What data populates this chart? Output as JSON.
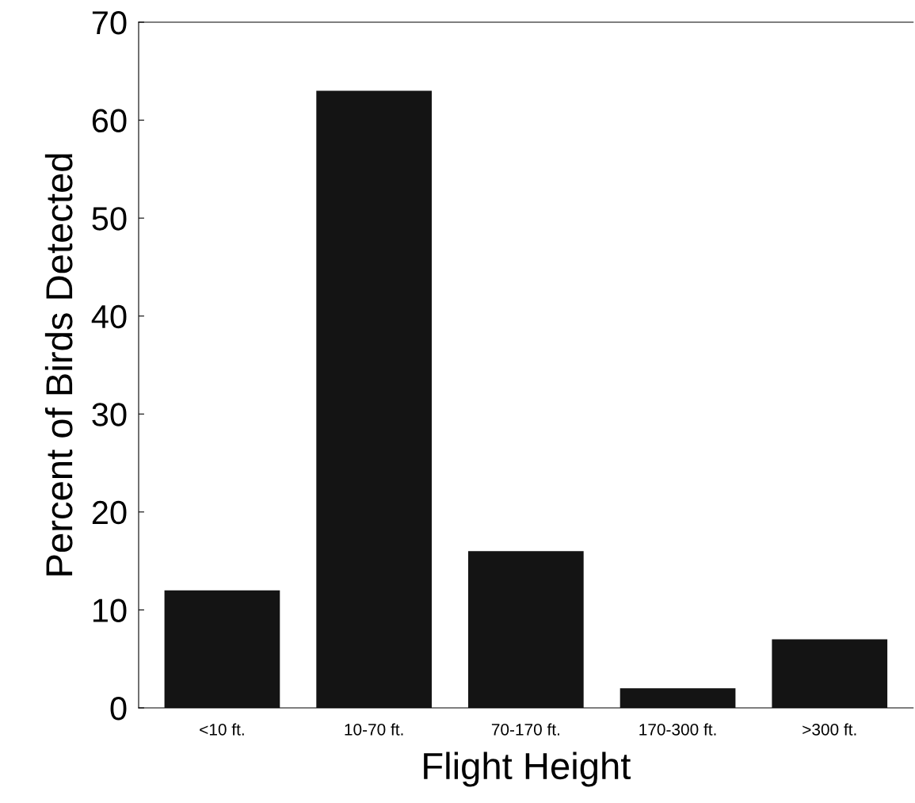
{
  "chart_data": {
    "type": "bar",
    "xlabel": "Flight Height",
    "ylabel": "Percent of Birds Detected",
    "categories": [
      "<10 ft.",
      "10-70 ft.",
      "70-170 ft.",
      "170-300 ft.",
      ">300 ft."
    ],
    "values": [
      12,
      63,
      16,
      2,
      7
    ],
    "color": "#141414",
    "ylim": [
      0,
      70
    ],
    "yticks": [
      0,
      10,
      20,
      30,
      40,
      50,
      60,
      70
    ],
    "grid": false
  }
}
